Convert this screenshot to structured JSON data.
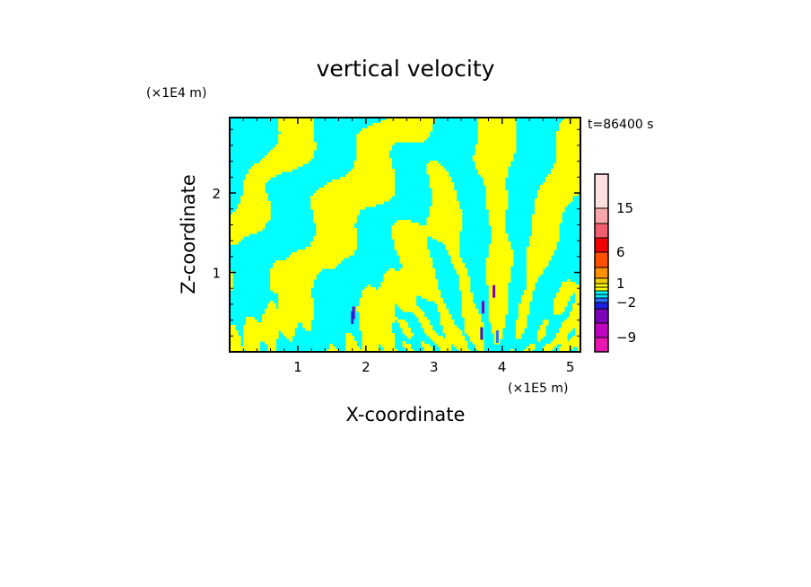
{
  "chart_data": {
    "type": "heatmap",
    "title": "vertical velocity",
    "xlabel": "X-coordinate",
    "ylabel": "Z-coordinate",
    "x_unit": "(×1E5 m)",
    "y_unit": "(×1E4 m)",
    "time_label": "t=86400 s",
    "xlim": [
      0,
      5.15
    ],
    "ylim": [
      0,
      2.95
    ],
    "x_ticks": [
      1,
      2,
      3,
      4,
      5
    ],
    "y_ticks": [
      1,
      2
    ],
    "colorbar": {
      "levels": [
        -12,
        -9,
        -6,
        -4,
        -2,
        -1,
        -0.5,
        0,
        0.5,
        1,
        2,
        4,
        6,
        9,
        12,
        15,
        18
      ],
      "colors": [
        "#e815b0",
        "#c000c0",
        "#7a00b8",
        "#1e1ee0",
        "#2a70ff",
        "#00e8ff",
        "#00ffff",
        "#ffff00",
        "#ffff00",
        "#f0d000",
        "#ff9000",
        "#ff5000",
        "#f00000",
        "#f06070",
        "#f8a8a8",
        "#ffe0e0"
      ],
      "labels": [
        "15",
        "6",
        "1",
        "−2",
        "−9"
      ],
      "label_values": [
        15,
        6,
        1,
        -2,
        -9
      ]
    },
    "field": {
      "dominant_colors": [
        "#00ffff",
        "#ffff00"
      ],
      "sign_regions": [
        {
          "x": [
            0.0,
            0.6
          ],
          "z": [
            1.6,
            2.95
          ],
          "sign": "negative"
        },
        {
          "x": [
            1.2,
            2.4
          ],
          "z": [
            1.7,
            2.4
          ],
          "sign": "positive"
        },
        {
          "x": [
            2.6,
            3.0
          ],
          "z": [
            0.0,
            1.4
          ],
          "sign": "positive"
        },
        {
          "x": [
            3.5,
            4.3
          ],
          "z": [
            0.0,
            2.95
          ],
          "sign": "alternating bands"
        }
      ]
    }
  }
}
